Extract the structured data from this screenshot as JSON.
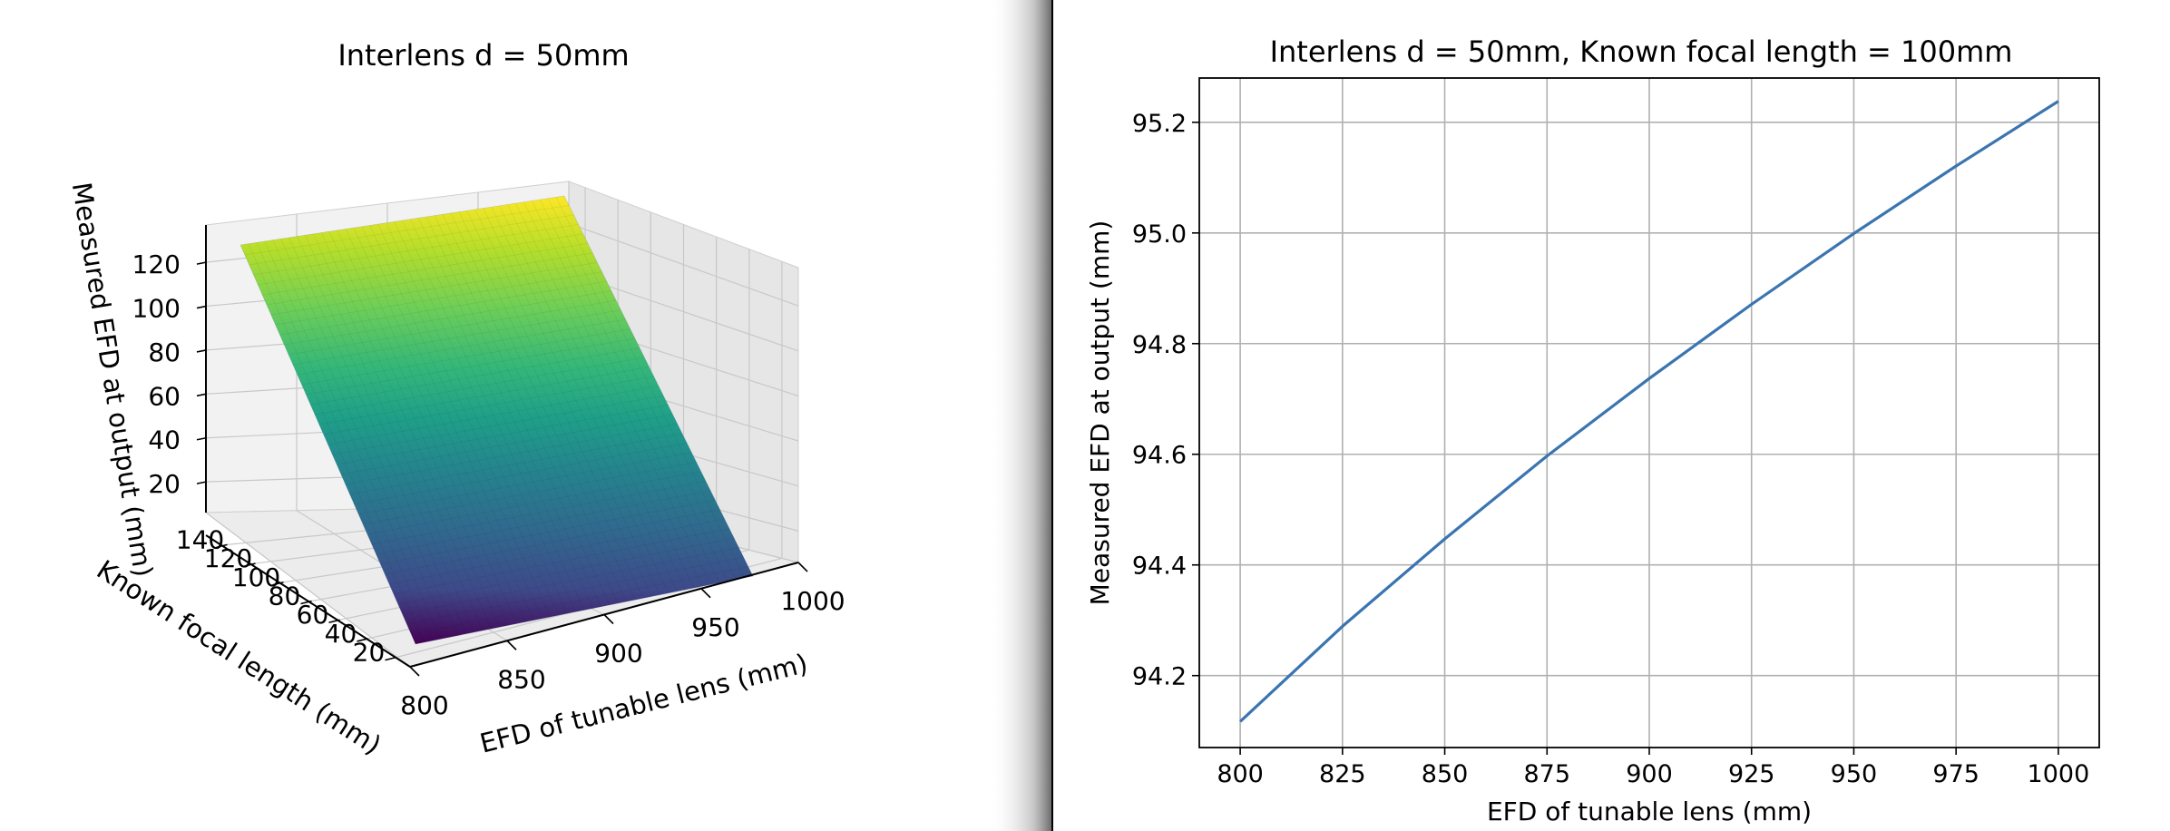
{
  "chart_data": [
    {
      "type": "surface",
      "title": "Interlens d = 50mm",
      "xlabel": "EFD of tunable lens (mm)",
      "ylabel": "Known focal length (mm)",
      "zlabel": "Measured EFD at output (mm)",
      "x_ticks": [
        "800",
        "850",
        "900",
        "950",
        "1000"
      ],
      "y_ticks": [
        "20",
        "40",
        "60",
        "80",
        "100",
        "120",
        "140"
      ],
      "z_ticks": [
        "20",
        "40",
        "60",
        "80",
        "100",
        "120"
      ],
      "xlim": [
        800,
        1000
      ],
      "ylim": [
        10,
        150
      ],
      "zlim": [
        6,
        137
      ],
      "surface": {
        "x_range": [
          800,
          1000
        ],
        "y_range": [
          10,
          150
        ],
        "z_at_y_min": 9.5,
        "z_at_y_max": 136,
        "colormap": "viridis"
      },
      "grid": true
    },
    {
      "type": "line",
      "title": "Interlens d = 50mm, Known focal length = 100mm",
      "xlabel": "EFD of tunable lens (mm)",
      "ylabel": "Measured EFD at output (mm)",
      "xlim": [
        790,
        1010
      ],
      "ylim": [
        94.07,
        95.28
      ],
      "x_ticks": [
        "800",
        "825",
        "850",
        "875",
        "900",
        "925",
        "950",
        "975",
        "1000"
      ],
      "y_ticks": [
        "94.2",
        "94.4",
        "94.6",
        "94.8",
        "95.0",
        "95.2"
      ],
      "grid": true,
      "series": [
        {
          "color": "#3a75b0",
          "x": [
            800,
            825,
            850,
            875,
            900,
            925,
            950,
            975,
            1000
          ],
          "y": [
            94.117,
            94.289,
            94.447,
            94.597,
            94.737,
            94.871,
            94.999,
            95.121,
            95.238
          ]
        }
      ]
    }
  ]
}
